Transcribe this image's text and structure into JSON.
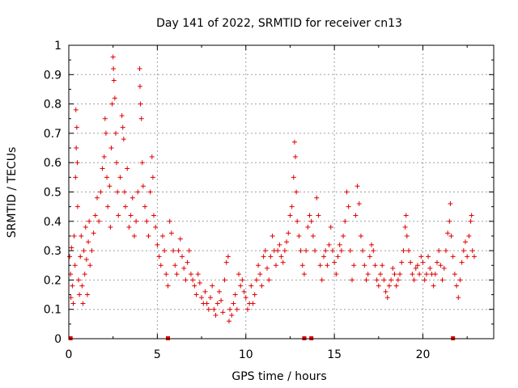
{
  "chart_data": {
    "type": "scatter",
    "title": "Day 141 of 2022, SRMTID for receiver cn13",
    "xlabel": "GPS time / hours",
    "ylabel": "SRMTID / TECUs",
    "xlim": [
      0,
      24
    ],
    "ylim": [
      0,
      1
    ],
    "x_ticks": [
      "0",
      "5",
      "10",
      "15",
      "20"
    ],
    "y_ticks": [
      "0",
      "0.1",
      "0.2",
      "0.3",
      "0.4",
      "0.5",
      "0.6",
      "0.7",
      "0.8",
      "0.9",
      "1"
    ],
    "grid": true,
    "marker": "plus",
    "color": "#e00000",
    "series": [
      {
        "name": "SRMTID",
        "points": [
          [
            0.05,
            0.28
          ],
          [
            0.1,
            0.22
          ],
          [
            0.12,
            0.14
          ],
          [
            0.15,
            0.31
          ],
          [
            0.2,
            0.18
          ],
          [
            0.25,
            0.12
          ],
          [
            0.3,
            0.35
          ],
          [
            0.35,
            0.25
          ],
          [
            0.38,
            0.55
          ],
          [
            0.4,
            0.78
          ],
          [
            0.42,
            0.65
          ],
          [
            0.45,
            0.72
          ],
          [
            0.48,
            0.6
          ],
          [
            0.5,
            0.45
          ],
          [
            0.55,
            0.2
          ],
          [
            0.6,
            0.15
          ],
          [
            0.65,
            0.28
          ],
          [
            0.7,
            0.35
          ],
          [
            0.75,
            0.18
          ],
          [
            0.8,
            0.12
          ],
          [
            0.85,
            0.3
          ],
          [
            0.9,
            0.22
          ],
          [
            0.95,
            0.38
          ],
          [
            1.0,
            0.27
          ],
          [
            1.05,
            0.15
          ],
          [
            1.1,
            0.33
          ],
          [
            1.15,
            0.4
          ],
          [
            1.2,
            0.25
          ],
          [
            1.3,
            0.3
          ],
          [
            1.4,
            0.36
          ],
          [
            1.5,
            0.42
          ],
          [
            1.6,
            0.48
          ],
          [
            1.7,
            0.4
          ],
          [
            1.8,
            0.5
          ],
          [
            1.9,
            0.58
          ],
          [
            2.0,
            0.62
          ],
          [
            2.05,
            0.75
          ],
          [
            2.1,
            0.7
          ],
          [
            2.15,
            0.55
          ],
          [
            2.2,
            0.45
          ],
          [
            2.3,
            0.52
          ],
          [
            2.35,
            0.38
          ],
          [
            2.4,
            0.65
          ],
          [
            2.45,
            0.8
          ],
          [
            2.5,
            0.96
          ],
          [
            2.52,
            0.92
          ],
          [
            2.55,
            0.88
          ],
          [
            2.6,
            0.82
          ],
          [
            2.65,
            0.7
          ],
          [
            2.7,
            0.6
          ],
          [
            2.75,
            0.5
          ],
          [
            2.8,
            0.42
          ],
          [
            2.9,
            0.55
          ],
          [
            3.0,
            0.76
          ],
          [
            3.05,
            0.72
          ],
          [
            3.1,
            0.68
          ],
          [
            3.15,
            0.5
          ],
          [
            3.2,
            0.45
          ],
          [
            3.3,
            0.58
          ],
          [
            3.4,
            0.38
          ],
          [
            3.5,
            0.42
          ],
          [
            3.6,
            0.48
          ],
          [
            3.7,
            0.35
          ],
          [
            3.8,
            0.4
          ],
          [
            3.9,
            0.5
          ],
          [
            4.0,
            0.92
          ],
          [
            4.02,
            0.86
          ],
          [
            4.05,
            0.8
          ],
          [
            4.1,
            0.75
          ],
          [
            4.15,
            0.6
          ],
          [
            4.2,
            0.52
          ],
          [
            4.3,
            0.45
          ],
          [
            4.4,
            0.4
          ],
          [
            4.5,
            0.35
          ],
          [
            4.6,
            0.5
          ],
          [
            4.7,
            0.62
          ],
          [
            4.75,
            0.55
          ],
          [
            4.8,
            0.42
          ],
          [
            4.9,
            0.38
          ],
          [
            5.0,
            0.32
          ],
          [
            5.1,
            0.28
          ],
          [
            5.2,
            0.25
          ],
          [
            5.3,
            0.35
          ],
          [
            5.4,
            0.3
          ],
          [
            5.5,
            0.22
          ],
          [
            5.6,
            0.18
          ],
          [
            5.7,
            0.4
          ],
          [
            5.8,
            0.36
          ],
          [
            5.9,
            0.3
          ],
          [
            6.0,
            0.25
          ],
          [
            6.1,
            0.22
          ],
          [
            6.2,
            0.3
          ],
          [
            6.3,
            0.34
          ],
          [
            6.4,
            0.28
          ],
          [
            6.5,
            0.24
          ],
          [
            6.6,
            0.2
          ],
          [
            6.7,
            0.26
          ],
          [
            6.8,
            0.3
          ],
          [
            6.9,
            0.22
          ],
          [
            7.0,
            0.2
          ],
          [
            7.1,
            0.18
          ],
          [
            7.2,
            0.15
          ],
          [
            7.3,
            0.22
          ],
          [
            7.4,
            0.19
          ],
          [
            7.5,
            0.14
          ],
          [
            7.6,
            0.12
          ],
          [
            7.7,
            0.16
          ],
          [
            7.8,
            0.12
          ],
          [
            7.9,
            0.1
          ],
          [
            8.0,
            0.14
          ],
          [
            8.1,
            0.18
          ],
          [
            8.2,
            0.1
          ],
          [
            8.3,
            0.08
          ],
          [
            8.4,
            0.12
          ],
          [
            8.5,
            0.16
          ],
          [
            8.6,
            0.13
          ],
          [
            8.7,
            0.09
          ],
          [
            8.8,
            0.2
          ],
          [
            8.9,
            0.26
          ],
          [
            9.0,
            0.28
          ],
          [
            9.05,
            0.06
          ],
          [
            9.1,
            0.1
          ],
          [
            9.2,
            0.08
          ],
          [
            9.3,
            0.12
          ],
          [
            9.4,
            0.15
          ],
          [
            9.5,
            0.1
          ],
          [
            9.6,
            0.22
          ],
          [
            9.7,
            0.18
          ],
          [
            9.8,
            0.2
          ],
          [
            9.9,
            0.16
          ],
          [
            10.0,
            0.14
          ],
          [
            10.1,
            0.1
          ],
          [
            10.2,
            0.12
          ],
          [
            10.3,
            0.18
          ],
          [
            10.4,
            0.12
          ],
          [
            10.5,
            0.15
          ],
          [
            10.6,
            0.2
          ],
          [
            10.7,
            0.25
          ],
          [
            10.8,
            0.22
          ],
          [
            10.9,
            0.18
          ],
          [
            11.0,
            0.28
          ],
          [
            11.1,
            0.3
          ],
          [
            11.2,
            0.24
          ],
          [
            11.3,
            0.2
          ],
          [
            11.4,
            0.28
          ],
          [
            11.5,
            0.35
          ],
          [
            11.6,
            0.3
          ],
          [
            11.7,
            0.25
          ],
          [
            11.8,
            0.3
          ],
          [
            11.9,
            0.32
          ],
          [
            12.0,
            0.28
          ],
          [
            12.1,
            0.26
          ],
          [
            12.2,
            0.3
          ],
          [
            12.3,
            0.33
          ],
          [
            12.4,
            0.36
          ],
          [
            12.5,
            0.42
          ],
          [
            12.6,
            0.45
          ],
          [
            12.7,
            0.55
          ],
          [
            12.75,
            0.67
          ],
          [
            12.8,
            0.62
          ],
          [
            12.85,
            0.5
          ],
          [
            12.9,
            0.4
          ],
          [
            13.0,
            0.35
          ],
          [
            13.1,
            0.3
          ],
          [
            13.2,
            0.25
          ],
          [
            13.3,
            0.22
          ],
          [
            13.4,
            0.3
          ],
          [
            13.5,
            0.38
          ],
          [
            13.6,
            0.42
          ],
          [
            13.7,
            0.4
          ],
          [
            13.8,
            0.35
          ],
          [
            13.9,
            0.3
          ],
          [
            14.0,
            0.48
          ],
          [
            14.1,
            0.42
          ],
          [
            14.2,
            0.25
          ],
          [
            14.3,
            0.2
          ],
          [
            14.4,
            0.28
          ],
          [
            14.5,
            0.3
          ],
          [
            14.6,
            0.25
          ],
          [
            14.7,
            0.32
          ],
          [
            14.8,
            0.38
          ],
          [
            14.9,
            0.3
          ],
          [
            15.0,
            0.26
          ],
          [
            15.1,
            0.22
          ],
          [
            15.2,
            0.28
          ],
          [
            15.3,
            0.32
          ],
          [
            15.4,
            0.3
          ],
          [
            15.5,
            0.35
          ],
          [
            15.6,
            0.4
          ],
          [
            15.7,
            0.5
          ],
          [
            15.8,
            0.45
          ],
          [
            15.9,
            0.3
          ],
          [
            16.0,
            0.2
          ],
          [
            16.1,
            0.25
          ],
          [
            16.2,
            0.42
          ],
          [
            16.3,
            0.52
          ],
          [
            16.4,
            0.46
          ],
          [
            16.5,
            0.35
          ],
          [
            16.6,
            0.3
          ],
          [
            16.7,
            0.25
          ],
          [
            16.8,
            0.2
          ],
          [
            16.9,
            0.22
          ],
          [
            17.0,
            0.28
          ],
          [
            17.1,
            0.32
          ],
          [
            17.2,
            0.3
          ],
          [
            17.3,
            0.25
          ],
          [
            17.4,
            0.2
          ],
          [
            17.5,
            0.18
          ],
          [
            17.6,
            0.22
          ],
          [
            17.7,
            0.25
          ],
          [
            17.8,
            0.2
          ],
          [
            17.9,
            0.16
          ],
          [
            18.0,
            0.14
          ],
          [
            18.1,
            0.18
          ],
          [
            18.2,
            0.2
          ],
          [
            18.3,
            0.24
          ],
          [
            18.4,
            0.22
          ],
          [
            18.5,
            0.18
          ],
          [
            18.6,
            0.2
          ],
          [
            18.7,
            0.22
          ],
          [
            18.8,
            0.26
          ],
          [
            18.9,
            0.3
          ],
          [
            19.0,
            0.38
          ],
          [
            19.05,
            0.42
          ],
          [
            19.1,
            0.35
          ],
          [
            19.2,
            0.3
          ],
          [
            19.3,
            0.26
          ],
          [
            19.4,
            0.22
          ],
          [
            19.5,
            0.2
          ],
          [
            19.6,
            0.24
          ],
          [
            19.7,
            0.25
          ],
          [
            19.8,
            0.22
          ],
          [
            19.9,
            0.28
          ],
          [
            20.0,
            0.26
          ],
          [
            20.1,
            0.2
          ],
          [
            20.2,
            0.22
          ],
          [
            20.3,
            0.28
          ],
          [
            20.4,
            0.24
          ],
          [
            20.5,
            0.22
          ],
          [
            20.6,
            0.18
          ],
          [
            20.7,
            0.22
          ],
          [
            20.8,
            0.26
          ],
          [
            20.9,
            0.3
          ],
          [
            21.0,
            0.25
          ],
          [
            21.1,
            0.2
          ],
          [
            21.2,
            0.24
          ],
          [
            21.3,
            0.3
          ],
          [
            21.4,
            0.36
          ],
          [
            21.5,
            0.4
          ],
          [
            21.55,
            0.46
          ],
          [
            21.6,
            0.35
          ],
          [
            21.7,
            0.28
          ],
          [
            21.8,
            0.22
          ],
          [
            21.9,
            0.18
          ],
          [
            22.0,
            0.14
          ],
          [
            22.1,
            0.2
          ],
          [
            22.2,
            0.26
          ],
          [
            22.3,
            0.3
          ],
          [
            22.4,
            0.33
          ],
          [
            22.5,
            0.28
          ],
          [
            22.6,
            0.35
          ],
          [
            22.7,
            0.4
          ],
          [
            22.75,
            0.42
          ],
          [
            22.8,
            0.3
          ],
          [
            22.9,
            0.28
          ]
        ]
      }
    ],
    "baseline_markers": [
      0.1,
      5.6,
      13.3,
      13.7,
      21.7
    ]
  }
}
